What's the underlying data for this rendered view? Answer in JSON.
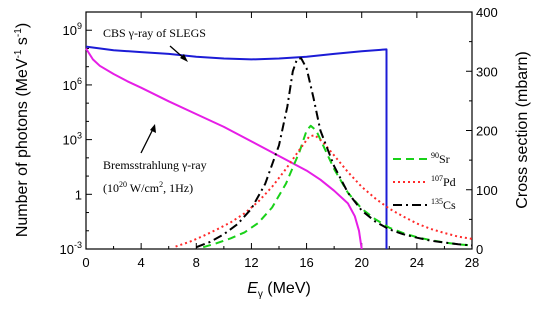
{
  "chart_data": {
    "type": "line",
    "xlabel_main": "E",
    "xlabel_sub": "γ",
    "xlabel_unit": " (MeV)",
    "ylabel_left": "Number of photons (MeV",
    "ylabel_left_exp1": "-1",
    "ylabel_left_mid": " s",
    "ylabel_left_exp2": "-1",
    "ylabel_left_end": ")",
    "ylabel_right": "Cross section (mbarn)",
    "xlim": [
      0,
      28
    ],
    "xticks": [
      "0",
      "4",
      "8",
      "12",
      "16",
      "20",
      "24",
      "28"
    ],
    "ylim_left_log10": [
      -3,
      10
    ],
    "yticks_left": [
      {
        "base": "10",
        "exp": "9",
        "log": 9
      },
      {
        "base": "10",
        "exp": "6",
        "log": 6
      },
      {
        "base": "10",
        "exp": "3",
        "log": 3
      },
      {
        "base": "1",
        "exp": "",
        "log": 0
      },
      {
        "base": "10",
        "exp": "-3",
        "log": -3
      }
    ],
    "ylim_right": [
      0,
      400
    ],
    "yticks_right": [
      "0",
      "100",
      "200",
      "300",
      "400"
    ],
    "annotations": {
      "cbs": "CBS γ-ray of SLEGS",
      "brems": "Bremsstrahlung γ-ray",
      "brems_params_a": "(10",
      "brems_params_exp": "20",
      "brems_params_b": " W/cm",
      "brems_params_exp2": "2",
      "brems_params_c": ", 1Hz)"
    },
    "series": [
      {
        "name": "CBS γ-ray of SLEGS",
        "axis": "left-log10",
        "color": "#1c1cd6",
        "dash": "solid",
        "points": [
          [
            0,
            8.1
          ],
          [
            2,
            7.9
          ],
          [
            4,
            7.8
          ],
          [
            6,
            7.7
          ],
          [
            8,
            7.55
          ],
          [
            10,
            7.45
          ],
          [
            12,
            7.4
          ],
          [
            14,
            7.45
          ],
          [
            16,
            7.55
          ],
          [
            18,
            7.7
          ],
          [
            20,
            7.85
          ],
          [
            21.8,
            7.95
          ],
          [
            21.8,
            -3
          ]
        ]
      },
      {
        "name": "Bremsstrahlung γ-ray",
        "axis": "left-log10",
        "color": "#e61ee6",
        "dash": "solid",
        "points": [
          [
            0,
            8.0
          ],
          [
            0.5,
            7.4
          ],
          [
            1,
            7.05
          ],
          [
            2,
            6.6
          ],
          [
            3,
            6.2
          ],
          [
            4,
            5.85
          ],
          [
            6,
            5.1
          ],
          [
            8,
            4.4
          ],
          [
            10,
            3.7
          ],
          [
            12,
            2.9
          ],
          [
            14,
            2.1
          ],
          [
            16,
            1.3
          ],
          [
            17,
            0.8
          ],
          [
            18,
            0.2
          ],
          [
            19,
            -0.5
          ],
          [
            19.5,
            -1.2
          ],
          [
            19.8,
            -2.0
          ],
          [
            20,
            -3
          ]
        ]
      },
      {
        "name": "90Sr",
        "label_sup": "90",
        "label_base": "Sr",
        "axis": "right",
        "color": "#19d119",
        "dash": "8,5",
        "points": [
          [
            8.5,
            3
          ],
          [
            9.5,
            10
          ],
          [
            10.5,
            18
          ],
          [
            11.5,
            28
          ],
          [
            12.5,
            44
          ],
          [
            13.5,
            70
          ],
          [
            14.5,
            110
          ],
          [
            15.5,
            165
          ],
          [
            16,
            200
          ],
          [
            16.3,
            208
          ],
          [
            16.7,
            200
          ],
          [
            17.3,
            170
          ],
          [
            18,
            135
          ],
          [
            19,
            95
          ],
          [
            20,
            68
          ],
          [
            21,
            50
          ],
          [
            22,
            36
          ],
          [
            23,
            27
          ],
          [
            24,
            20
          ],
          [
            25,
            15
          ],
          [
            26,
            11
          ],
          [
            27,
            8
          ],
          [
            28,
            6
          ]
        ]
      },
      {
        "name": "107Pd",
        "label_sup": "107",
        "label_base": "Pd",
        "axis": "right",
        "color": "#ff2a2a",
        "dash": "2,3",
        "points": [
          [
            6.5,
            4
          ],
          [
            7.5,
            12
          ],
          [
            8.5,
            22
          ],
          [
            9.5,
            33
          ],
          [
            10.5,
            45
          ],
          [
            11.5,
            60
          ],
          [
            12.5,
            80
          ],
          [
            13.5,
            105
          ],
          [
            14.5,
            135
          ],
          [
            15.5,
            168
          ],
          [
            16.2,
            190
          ],
          [
            16.6,
            192
          ],
          [
            17.2,
            180
          ],
          [
            18,
            158
          ],
          [
            19,
            130
          ],
          [
            20,
            105
          ],
          [
            21,
            85
          ],
          [
            22,
            68
          ],
          [
            23,
            55
          ],
          [
            24,
            43
          ],
          [
            25,
            34
          ],
          [
            26,
            27
          ],
          [
            27,
            21
          ],
          [
            28,
            17
          ]
        ]
      },
      {
        "name": "135Cs",
        "label_sup": "135",
        "label_base": "Cs",
        "axis": "right",
        "color": "#000000",
        "dash": "9,4,2,4",
        "points": [
          [
            8,
            3
          ],
          [
            9,
            12
          ],
          [
            10,
            25
          ],
          [
            11,
            42
          ],
          [
            12,
            68
          ],
          [
            13,
            110
          ],
          [
            14,
            175
          ],
          [
            14.6,
            240
          ],
          [
            15,
            300
          ],
          [
            15.3,
            320
          ],
          [
            15.6,
            322
          ],
          [
            16,
            305
          ],
          [
            16.5,
            255
          ],
          [
            17,
            200
          ],
          [
            18,
            140
          ],
          [
            19,
            95
          ],
          [
            20,
            65
          ],
          [
            21,
            46
          ],
          [
            22,
            33
          ],
          [
            23,
            25
          ],
          [
            24,
            19
          ],
          [
            25,
            14
          ],
          [
            26,
            11
          ],
          [
            27,
            8
          ],
          [
            28,
            6
          ]
        ]
      }
    ]
  }
}
